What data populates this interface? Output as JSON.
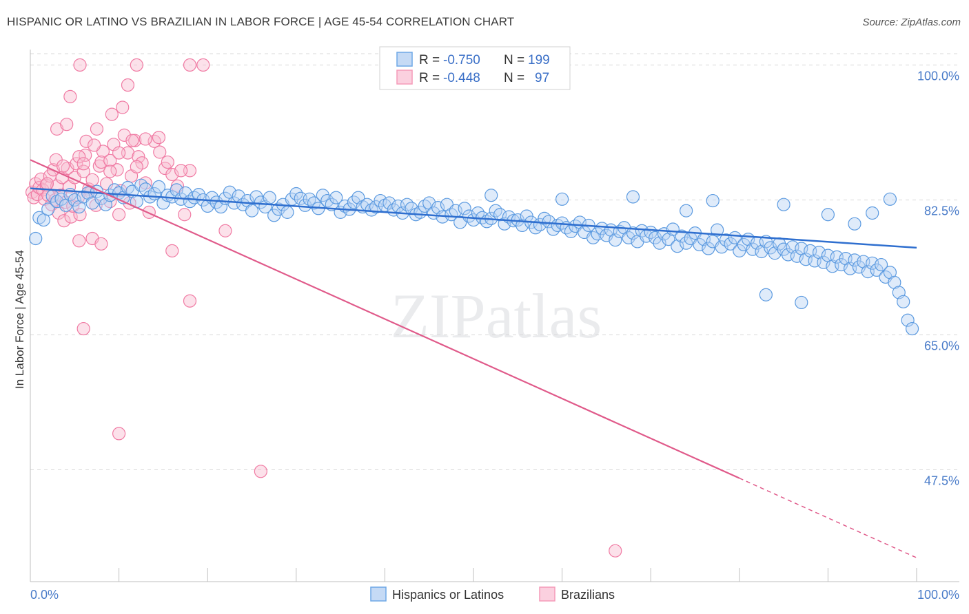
{
  "title": "HISPANIC OR LATINO VS BRAZILIAN IN LABOR FORCE | AGE 45-54 CORRELATION CHART",
  "source": "Source: ZipAtlas.com",
  "watermark": "ZIPatlas",
  "colors": {
    "blue": "#6fa8e6",
    "blue_line": "#2f6fcf",
    "pink": "#f59ab8",
    "pink_line": "#e05a8a",
    "axis_text": "#4a7cc9"
  },
  "chart_data": {
    "type": "scatter",
    "ylabel": "In Labor Force | Age 45-54",
    "xlim": [
      0,
      100
    ],
    "ylim": [
      33,
      102
    ],
    "y_ticks": [
      100.0,
      82.5,
      65.0,
      47.5
    ],
    "y_tick_labels": [
      "100.0%",
      "82.5%",
      "65.0%",
      "47.5%"
    ],
    "x_tick_labels": [
      "0.0%",
      "100.0%"
    ],
    "grid": "horizontal dashed",
    "legend_placement": "top-center",
    "stats": [
      {
        "r_label": "R =",
        "r": "-0.750",
        "n_label": "N =",
        "n": "199"
      },
      {
        "r_label": "R =",
        "r": "-0.448",
        "n_label": "N =",
        "n": "97"
      }
    ],
    "series": [
      {
        "name": "Hispanics or Latinos",
        "trend": {
          "x": [
            0,
            100
          ],
          "y": [
            84.0,
            76.3
          ]
        },
        "points": [
          [
            0.6,
            77.5
          ],
          [
            1,
            80.2
          ],
          [
            1.5,
            79.9
          ],
          [
            2,
            81.3
          ],
          [
            2.5,
            83
          ],
          [
            3,
            82.3
          ],
          [
            3.5,
            82.6
          ],
          [
            4,
            81.8
          ],
          [
            4.5,
            83.2
          ],
          [
            5,
            82.5
          ],
          [
            5.5,
            81.6
          ],
          [
            6,
            82.9
          ],
          [
            6.5,
            83.4
          ],
          [
            7,
            82.1
          ],
          [
            7.5,
            83.6
          ],
          [
            8,
            82.7
          ],
          [
            8.5,
            81.9
          ],
          [
            9,
            83.1
          ],
          [
            9.5,
            83.8
          ],
          [
            10,
            83.4
          ],
          [
            10.5,
            82.8
          ],
          [
            11,
            84.1
          ],
          [
            11.5,
            83.6
          ],
          [
            12,
            82.3
          ],
          [
            12.5,
            84.4
          ],
          [
            13,
            83.9
          ],
          [
            13.5,
            82.9
          ],
          [
            14,
            83.3
          ],
          [
            14.5,
            84.2
          ],
          [
            15,
            82.1
          ],
          [
            15.5,
            83.1
          ],
          [
            16,
            82.9
          ],
          [
            16.5,
            83.8
          ],
          [
            17,
            82.6
          ],
          [
            17.5,
            83.4
          ],
          [
            18,
            82.3
          ],
          [
            18.5,
            82.8
          ],
          [
            19,
            83.2
          ],
          [
            19.5,
            82.5
          ],
          [
            20,
            81.7
          ],
          [
            20.5,
            82.8
          ],
          [
            21,
            82.2
          ],
          [
            21.5,
            81.6
          ],
          [
            22,
            82.7
          ],
          [
            22.5,
            83.5
          ],
          [
            23,
            82.1
          ],
          [
            23.5,
            83
          ],
          [
            24,
            81.9
          ],
          [
            24.5,
            82.4
          ],
          [
            25,
            81.1
          ],
          [
            25.5,
            82.9
          ],
          [
            26,
            82.2
          ],
          [
            26.5,
            81.6
          ],
          [
            27,
            82.8
          ],
          [
            27.5,
            80.5
          ],
          [
            28,
            81.3
          ],
          [
            28.5,
            81.9
          ],
          [
            29,
            80.9
          ],
          [
            29.5,
            82.6
          ],
          [
            30,
            83.3
          ],
          [
            30.5,
            82.7
          ],
          [
            31,
            81.8
          ],
          [
            31.5,
            82.6
          ],
          [
            32,
            82.1
          ],
          [
            32.5,
            81.4
          ],
          [
            33,
            83.1
          ],
          [
            33.5,
            82.4
          ],
          [
            34,
            81.9
          ],
          [
            34.5,
            82.8
          ],
          [
            35,
            80.9
          ],
          [
            35.5,
            81.7
          ],
          [
            36,
            81.3
          ],
          [
            36.5,
            82.2
          ],
          [
            37,
            82.8
          ],
          [
            37.5,
            81.6
          ],
          [
            38,
            81.9
          ],
          [
            38.5,
            81.2
          ],
          [
            39,
            81.6
          ],
          [
            39.5,
            82.4
          ],
          [
            40,
            81.8
          ],
          [
            40.5,
            82.1
          ],
          [
            41,
            81.2
          ],
          [
            41.5,
            81.7
          ],
          [
            42,
            80.8
          ],
          [
            42.5,
            81.9
          ],
          [
            43,
            81.4
          ],
          [
            43.5,
            80.6
          ],
          [
            44,
            80.9
          ],
          [
            44.5,
            81.7
          ],
          [
            45,
            82.1
          ],
          [
            45.5,
            80.8
          ],
          [
            46,
            81.5
          ],
          [
            46.5,
            80.3
          ],
          [
            47,
            81.9
          ],
          [
            47.5,
            80.6
          ],
          [
            48,
            81.1
          ],
          [
            48.5,
            79.6
          ],
          [
            49,
            81.4
          ],
          [
            49.5,
            80.4
          ],
          [
            50,
            79.9
          ],
          [
            50.5,
            80.8
          ],
          [
            51,
            80.2
          ],
          [
            51.5,
            79.7
          ],
          [
            52,
            80.1
          ],
          [
            52.5,
            81.1
          ],
          [
            53,
            80.6
          ],
          [
            53.5,
            79.4
          ],
          [
            54,
            80.3
          ],
          [
            54.5,
            79.8
          ],
          [
            55,
            79.9
          ],
          [
            55.5,
            79.2
          ],
          [
            56,
            80.4
          ],
          [
            56.5,
            79.6
          ],
          [
            57,
            78.9
          ],
          [
            57.5,
            79.3
          ],
          [
            58,
            80.1
          ],
          [
            58.5,
            79.7
          ],
          [
            59,
            78.7
          ],
          [
            59.5,
            79.2
          ],
          [
            60,
            79.5
          ],
          [
            60.5,
            78.9
          ],
          [
            61,
            78.4
          ],
          [
            61.5,
            79.1
          ],
          [
            62,
            79.6
          ],
          [
            62.5,
            78.3
          ],
          [
            63,
            79.2
          ],
          [
            63.5,
            77.6
          ],
          [
            64,
            78.1
          ],
          [
            64.5,
            78.8
          ],
          [
            65,
            77.9
          ],
          [
            65.5,
            78.6
          ],
          [
            66,
            77.3
          ],
          [
            66.5,
            78.4
          ],
          [
            67,
            78.9
          ],
          [
            67.5,
            77.6
          ],
          [
            68,
            78.2
          ],
          [
            68.5,
            77.1
          ],
          [
            69,
            78.5
          ],
          [
            69.5,
            77.8
          ],
          [
            70,
            78.3
          ],
          [
            70.5,
            77.6
          ],
          [
            71,
            76.9
          ],
          [
            71.5,
            78.1
          ],
          [
            72,
            77.4
          ],
          [
            72.5,
            78.7
          ],
          [
            73,
            76.5
          ],
          [
            73.5,
            77.8
          ],
          [
            74,
            76.9
          ],
          [
            74.5,
            77.5
          ],
          [
            75,
            78.2
          ],
          [
            75.5,
            76.7
          ],
          [
            76,
            77.4
          ],
          [
            76.5,
            76.2
          ],
          [
            77,
            77.1
          ],
          [
            77.5,
            78.6
          ],
          [
            78,
            76.4
          ],
          [
            78.5,
            77.3
          ],
          [
            79,
            76.8
          ],
          [
            79.5,
            77.6
          ],
          [
            80,
            75.9
          ],
          [
            80.5,
            76.7
          ],
          [
            81,
            77.4
          ],
          [
            81.5,
            76.1
          ],
          [
            82,
            76.9
          ],
          [
            82.5,
            75.8
          ],
          [
            83,
            77.1
          ],
          [
            83.5,
            76.3
          ],
          [
            84,
            75.6
          ],
          [
            84.5,
            76.8
          ],
          [
            85,
            76.1
          ],
          [
            85.5,
            75.4
          ],
          [
            86,
            76.4
          ],
          [
            86.5,
            75.2
          ],
          [
            87,
            76.2
          ],
          [
            87.5,
            74.8
          ],
          [
            88,
            75.9
          ],
          [
            88.5,
            74.6
          ],
          [
            89,
            75.7
          ],
          [
            89.5,
            74.4
          ],
          [
            90,
            75.3
          ],
          [
            90.5,
            73.9
          ],
          [
            91,
            75.1
          ],
          [
            91.5,
            74.1
          ],
          [
            92,
            74.9
          ],
          [
            92.5,
            73.6
          ],
          [
            93,
            74.7
          ],
          [
            93.5,
            73.8
          ],
          [
            94,
            74.5
          ],
          [
            94.5,
            73.2
          ],
          [
            95,
            74.3
          ],
          [
            95.5,
            73.4
          ],
          [
            96,
            74.1
          ],
          [
            96.5,
            72.5
          ],
          [
            97,
            73.1
          ],
          [
            97.5,
            71.8
          ],
          [
            98,
            70.5
          ],
          [
            98.5,
            69.3
          ],
          [
            99,
            66.9
          ],
          [
            99.5,
            65.8
          ],
          [
            60,
            82.6
          ],
          [
            68,
            82.9
          ],
          [
            74,
            81.1
          ],
          [
            77,
            82.4
          ],
          [
            85,
            81.9
          ],
          [
            90,
            80.6
          ],
          [
            93,
            79.4
          ],
          [
            95,
            80.8
          ],
          [
            97,
            82.6
          ],
          [
            83,
            70.2
          ],
          [
            87,
            69.2
          ],
          [
            52,
            83.1
          ]
        ]
      },
      {
        "name": "Brazilians",
        "trend": {
          "x": [
            0,
            100
          ],
          "y": [
            87.7,
            36.1
          ],
          "solid_until": 80
        },
        "points": [
          [
            0.2,
            83.5
          ],
          [
            0.4,
            82.8
          ],
          [
            0.6,
            84.6
          ],
          [
            0.8,
            83.2
          ],
          [
            1,
            84.1
          ],
          [
            1.2,
            85.2
          ],
          [
            1.4,
            83.8
          ],
          [
            1.6,
            82.6
          ],
          [
            1.8,
            84.4
          ],
          [
            2,
            83.1
          ],
          [
            2.2,
            85.6
          ],
          [
            2.4,
            81.9
          ],
          [
            2.6,
            86.4
          ],
          [
            2.8,
            82.5
          ],
          [
            3,
            84.3
          ],
          [
            3.2,
            80.8
          ],
          [
            3.4,
            83.1
          ],
          [
            3.6,
            85.4
          ],
          [
            3.8,
            79.8
          ],
          [
            4,
            82.2
          ],
          [
            4.2,
            86.6
          ],
          [
            4.4,
            84.2
          ],
          [
            4.6,
            80.3
          ],
          [
            4.8,
            81.7
          ],
          [
            5,
            85.4
          ],
          [
            5.2,
            87.2
          ],
          [
            5.4,
            82.8
          ],
          [
            5.6,
            80.6
          ],
          [
            6,
            86.2
          ],
          [
            6.2,
            88.3
          ],
          [
            6.6,
            83.9
          ],
          [
            7,
            85.1
          ],
          [
            7.4,
            81.8
          ],
          [
            7.8,
            86.9
          ],
          [
            8.2,
            88.8
          ],
          [
            8.6,
            84.6
          ],
          [
            9,
            82.3
          ],
          [
            9.4,
            89.7
          ],
          [
            9.8,
            86.4
          ],
          [
            10.2,
            83.7
          ],
          [
            10.6,
            90.9
          ],
          [
            11,
            88.6
          ],
          [
            11.4,
            85.6
          ],
          [
            11.8,
            90.2
          ],
          [
            12.2,
            88.1
          ],
          [
            12.6,
            87.3
          ],
          [
            13,
            84.7
          ],
          [
            13.4,
            80.9
          ],
          [
            14,
            90.1
          ],
          [
            14.6,
            88.7
          ],
          [
            15.2,
            86.6
          ],
          [
            16,
            85.8
          ],
          [
            16.6,
            84.3
          ],
          [
            17.4,
            80.6
          ],
          [
            18,
            86.3
          ],
          [
            3,
            91.7
          ],
          [
            4.5,
            95.9
          ],
          [
            5.5,
            88.1
          ],
          [
            6,
            87.2
          ],
          [
            6.8,
            83.5
          ],
          [
            7.5,
            91.7
          ],
          [
            8,
            87.4
          ],
          [
            9,
            87.6
          ],
          [
            10,
            88.6
          ],
          [
            11.5,
            90.2
          ],
          [
            12,
            86.8
          ],
          [
            13,
            90.4
          ],
          [
            14.5,
            90.6
          ],
          [
            15.5,
            87.4
          ],
          [
            17,
            86.3
          ],
          [
            5.5,
            77.2
          ],
          [
            7,
            77.5
          ],
          [
            8,
            76.8
          ],
          [
            9,
            86.2
          ],
          [
            10,
            80.6
          ],
          [
            11.2,
            82.1
          ],
          [
            16,
            75.9
          ],
          [
            18,
            69.4
          ],
          [
            22,
            78.5
          ],
          [
            6,
            65.8
          ],
          [
            10,
            52.2
          ],
          [
            26,
            47.3
          ],
          [
            66,
            37.0
          ],
          [
            5.6,
            100
          ],
          [
            12,
            100
          ],
          [
            18,
            100
          ],
          [
            19.5,
            100
          ],
          [
            11,
            97.4
          ],
          [
            6.3,
            90.1
          ],
          [
            9.2,
            93.6
          ],
          [
            4.1,
            92.3
          ],
          [
            10.4,
            94.5
          ],
          [
            7.2,
            89.6
          ],
          [
            1.9,
            84.6
          ],
          [
            2.9,
            87.7
          ],
          [
            3.7,
            86.9
          ]
        ]
      }
    ]
  },
  "legend_bottom": [
    "Hispanics or Latinos",
    "Brazilians"
  ]
}
